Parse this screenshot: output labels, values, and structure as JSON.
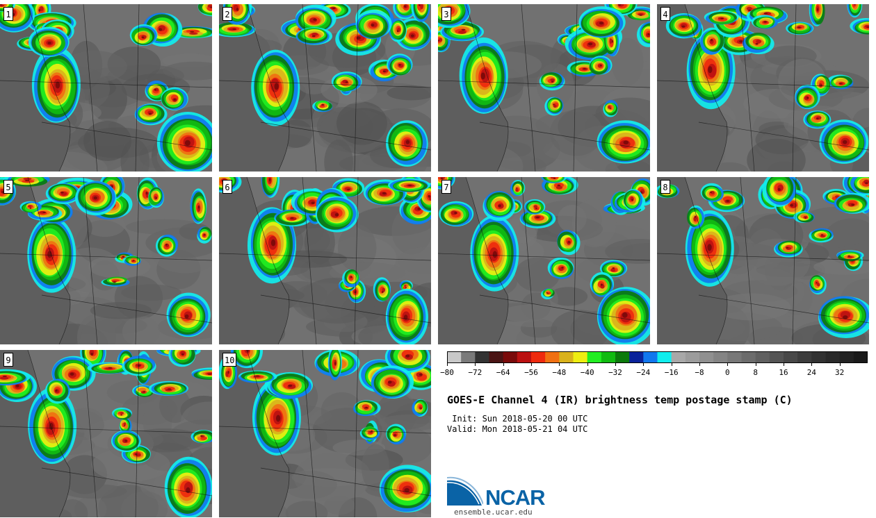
{
  "panels": [
    {
      "label": "1"
    },
    {
      "label": "2"
    },
    {
      "label": "3"
    },
    {
      "label": "4"
    },
    {
      "label": "5"
    },
    {
      "label": "6"
    },
    {
      "label": "7"
    },
    {
      "label": "8"
    },
    {
      "label": "9"
    },
    {
      "label": "10"
    }
  ],
  "colorbar": {
    "ticks": [
      "−80",
      "−72",
      "−64",
      "−56",
      "−48",
      "−40",
      "−32",
      "−24",
      "−16",
      "−8",
      "0",
      "8",
      "16",
      "24",
      "32"
    ],
    "colors": [
      "#c8c8c8",
      "#7a7a7a",
      "#333333",
      "#4a1414",
      "#7a0a0a",
      "#bb1111",
      "#ee2a0e",
      "#f07011",
      "#d9b21c",
      "#eeee11",
      "#22ee22",
      "#11bb11",
      "#0b7a0b",
      "#0a229a",
      "#1177ee",
      "#11eeee",
      "#a8a8a8",
      "#9c9c9c",
      "#909090",
      "#848484",
      "#787878",
      "#6c6c6c",
      "#606060",
      "#545454",
      "#484848",
      "#3c3c3c",
      "#323232",
      "#2a2a2a",
      "#222222",
      "#1a1a1a"
    ]
  },
  "title": "GOES-E Channel 4 (IR) brightness temp postage stamp (C)",
  "init": " Init: Sun 2018-05-20 00 UTC",
  "valid": "Valid: Mon 2018-05-21 04 UTC",
  "logo": {
    "text": "NCAR",
    "site": "ensemble.ucar.edu"
  }
}
